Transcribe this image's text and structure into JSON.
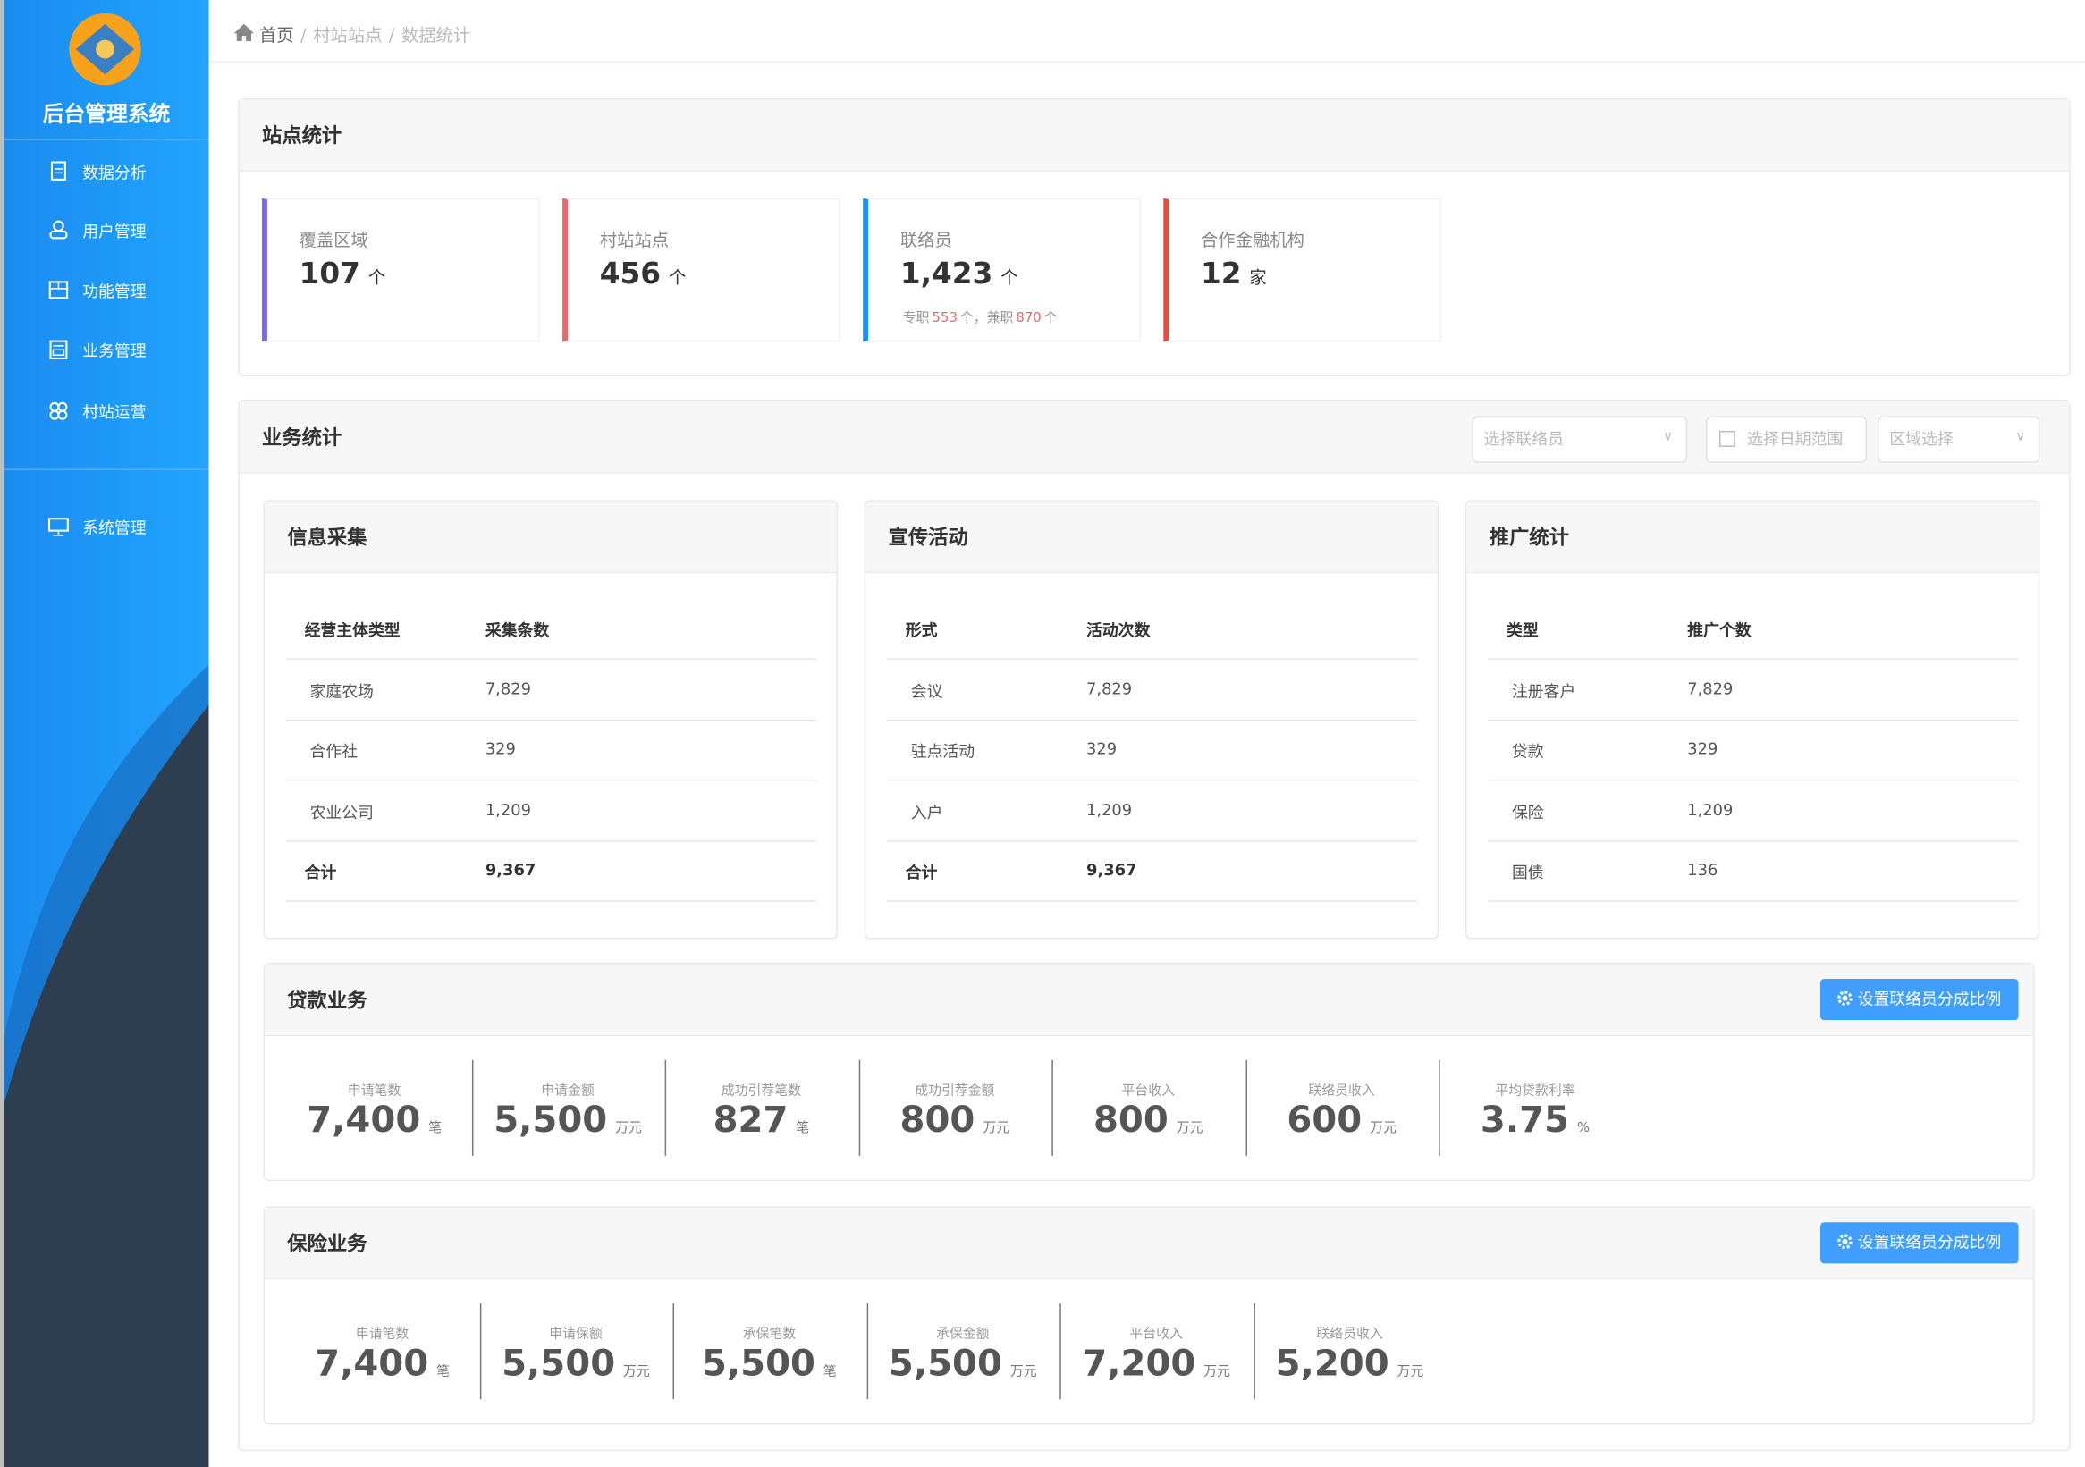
{
  "sidebar": {
    "title": "后台管理系统",
    "menu": [
      "数据分析",
      "用户管理",
      "功能管理",
      "业务管理",
      "村站运营",
      "系统管理"
    ]
  },
  "breadcrumb": {
    "items": [
      "首页",
      "村站站点",
      "数据统计"
    ],
    "separator": "/"
  },
  "station_stats": {
    "title": "站点统计",
    "cards": [
      {
        "label": "覆盖区域",
        "value": "107",
        "unit": "个",
        "color": "#7b68ee"
      },
      {
        "label": "村站站点",
        "value": "456",
        "unit": "个",
        "color": "#e86a6a"
      },
      {
        "label": "联络员",
        "value": "1,423",
        "unit": "个",
        "color": "#1890ff",
        "note": [
          "专职",
          "553",
          "个，兼职",
          "870",
          "个"
        ]
      },
      {
        "label": "合作金融机构",
        "value": "12",
        "unit": "家",
        "color": "#e74c3c"
      }
    ]
  },
  "business_stats": {
    "title": "业务统计",
    "filters": [
      "选择联络员",
      "选择日期范围",
      "区域选择"
    ],
    "tables": [
      {
        "title": "信息采集",
        "headers": [
          "经营主体类型",
          "采集条数"
        ],
        "rows": [
          [
            "家庭农场",
            "7,829"
          ],
          [
            "合作社",
            "329"
          ],
          [
            "农业公司",
            "1,209"
          ]
        ],
        "total": [
          "合计",
          "9,367"
        ]
      },
      {
        "title": "宣传活动",
        "headers": [
          "形式",
          "活动次数"
        ],
        "rows": [
          [
            "会议",
            "7,829"
          ],
          [
            "驻点活动",
            "329"
          ],
          [
            "入户",
            "1,209"
          ]
        ],
        "total": [
          "合计",
          "9,367"
        ]
      },
      {
        "title": "推广统计",
        "headers": [
          "类型",
          "推广个数"
        ],
        "rows": [
          [
            "注册客户",
            "7,829"
          ],
          [
            "贷款",
            "329"
          ],
          [
            "保险",
            "1,209"
          ],
          [
            "国债",
            "136"
          ]
        ]
      }
    ],
    "sections": [
      {
        "title": "贷款业务",
        "button": "设置联络员分成比例",
        "metrics": [
          {
            "label": "申请笔数",
            "value": "7,400",
            "unit": "笔"
          },
          {
            "label": "申请金额",
            "value": "5,500",
            "unit": "万元"
          },
          {
            "label": "成功引荐笔数",
            "value": "827",
            "unit": "笔"
          },
          {
            "label": "成功引荐金额",
            "value": "800",
            "unit": "万元"
          },
          {
            "label": "平台收入",
            "value": "800",
            "unit": "万元"
          },
          {
            "label": "联络员收入",
            "value": "600",
            "unit": "万元"
          },
          {
            "label": "平均贷款利率",
            "value": "3.75",
            "unit": "%"
          }
        ]
      },
      {
        "title": "保险业务",
        "button": "设置联络员分成比例",
        "metrics": [
          {
            "label": "申请笔数",
            "value": "7,400",
            "unit": "笔"
          },
          {
            "label": "申请保额",
            "value": "5,500",
            "unit": "万元"
          },
          {
            "label": "承保笔数",
            "value": "5,500",
            "unit": "笔"
          },
          {
            "label": "承保金额",
            "value": "5,500",
            "unit": "万元"
          },
          {
            "label": "平台收入",
            "value": "7,200",
            "unit": "万元"
          },
          {
            "label": "联络员收入",
            "value": "5,200",
            "unit": "万元"
          }
        ]
      }
    ]
  }
}
